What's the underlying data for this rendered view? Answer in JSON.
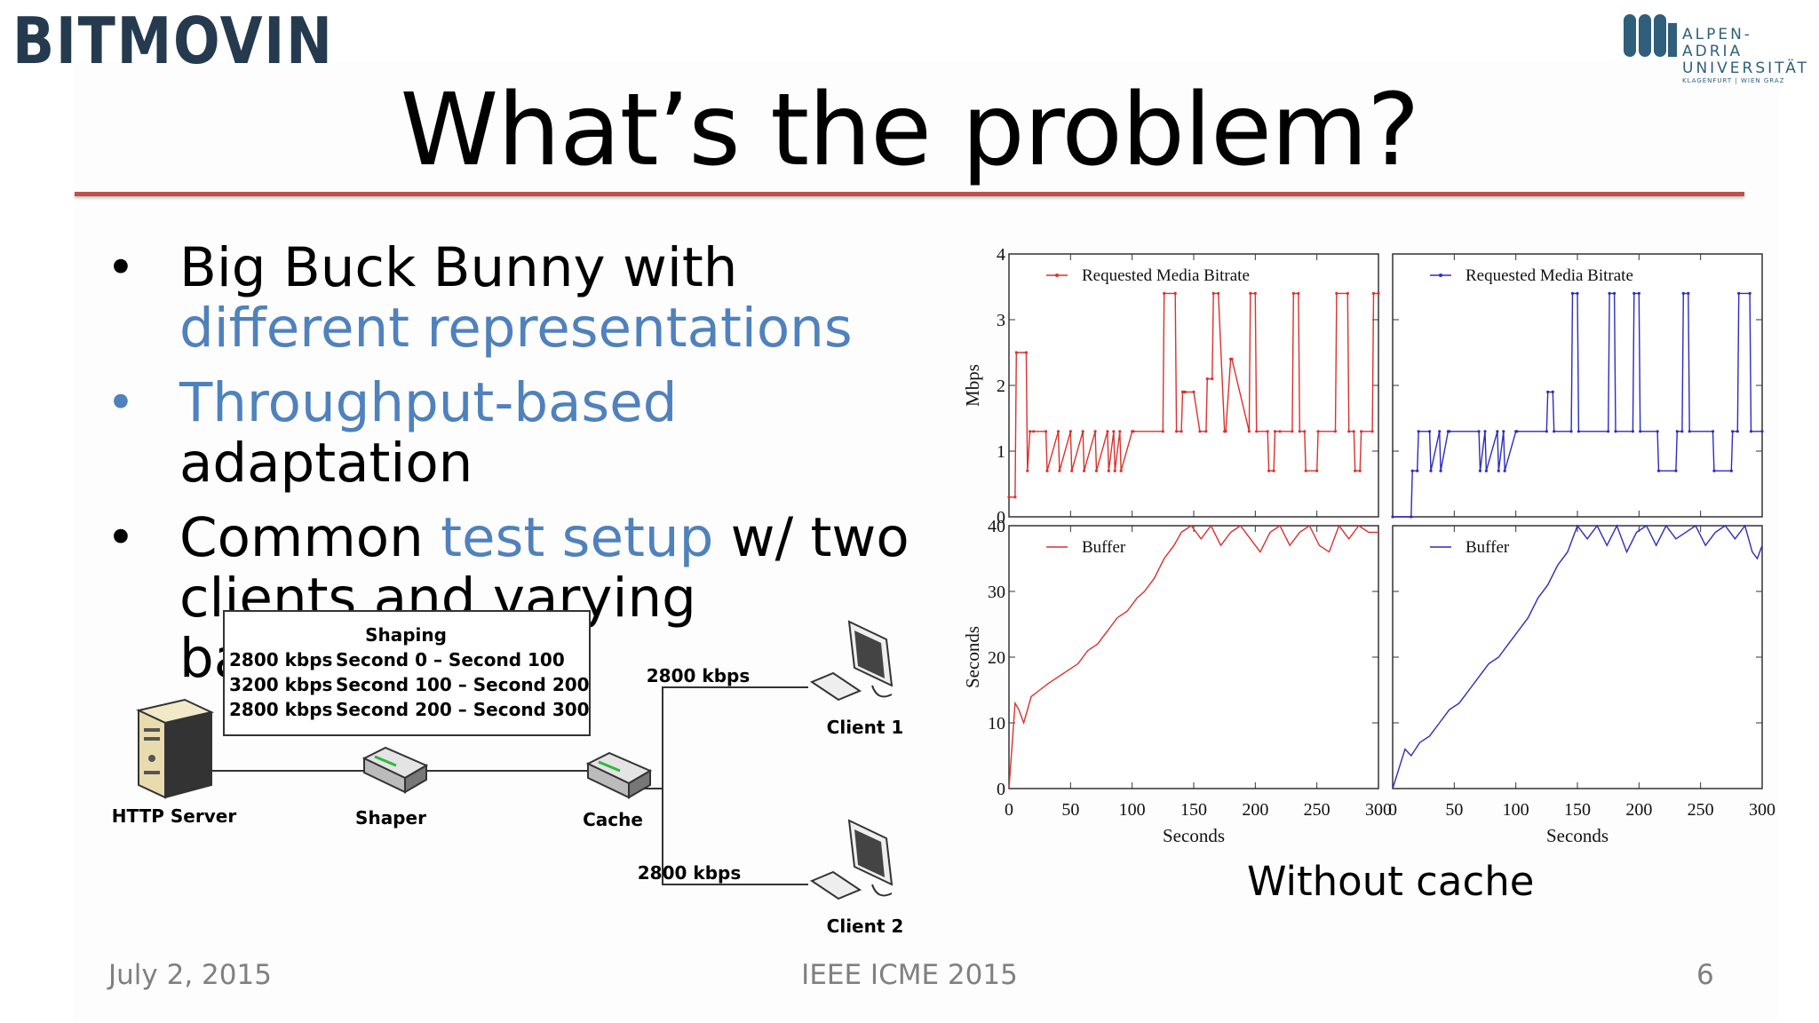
{
  "header": {
    "brand": "BITMOVIN",
    "partner_logo": {
      "line1": "ALPEN-ADRIA",
      "line2": "UNIVERSITÄT",
      "line3": "KLAGENFURT | WIEN GRAZ"
    }
  },
  "slide": {
    "title": "What’s the problem?",
    "bullets": [
      {
        "parts": [
          {
            "text": "Big Buck Bunny with ",
            "hl": false
          },
          {
            "text": "different representations",
            "hl": true
          }
        ]
      },
      {
        "parts": [
          {
            "text": "Throughput-based",
            "hl": true
          },
          {
            "text": " adaptation",
            "hl": false
          }
        ]
      },
      {
        "parts": [
          {
            "text": "Common ",
            "hl": false
          },
          {
            "text": "test setup",
            "hl": true
          },
          {
            "text": " w/ two clients and varying bandwidth",
            "hl": false
          }
        ]
      }
    ],
    "caption": "Without cache"
  },
  "diagram": {
    "shaping_title": "Shaping",
    "shaping_rows": [
      {
        "rate": "2800 kbps",
        "period": "Second 0 – Second 100"
      },
      {
        "rate": "3200 kbps",
        "period": "Second 100 – Second 200"
      },
      {
        "rate": "2800 kbps",
        "period": "Second 200 – Second 300"
      }
    ],
    "nodes": {
      "server": "HTTP Server",
      "shaper": "Shaper",
      "cache": "Cache",
      "client1": "Client 1",
      "client2": "Client 2"
    },
    "link1": "2800 kbps",
    "link2": "2800 kbps"
  },
  "footer": {
    "date": "July 2, 2015",
    "event": "IEEE ICME  2015",
    "page": "6"
  },
  "chart_data": [
    {
      "type": "line",
      "panel": "top-left",
      "ylabel": "Mbps",
      "xlim": [
        0,
        300
      ],
      "ylim": [
        0,
        4
      ],
      "yticks": [
        0,
        1,
        2,
        3,
        4
      ],
      "legend": "Requested Media Bitrate",
      "color": "#d9322e",
      "x": [
        0,
        5,
        6,
        14,
        15,
        17,
        20,
        30,
        31,
        40,
        41,
        50,
        51,
        60,
        61,
        70,
        71,
        80,
        81,
        85,
        86,
        90,
        91,
        100,
        101,
        125,
        126,
        135,
        136,
        140,
        141,
        142,
        143,
        150,
        155,
        160,
        161,
        165,
        166,
        170,
        175,
        176,
        180,
        181,
        195,
        196,
        200,
        201,
        210,
        211,
        215,
        216,
        220,
        230,
        231,
        235,
        236,
        240,
        241,
        250,
        251,
        265,
        266,
        275,
        276,
        280,
        281,
        285,
        286,
        295,
        296,
        300
      ],
      "y": [
        0.3,
        0.3,
        2.5,
        2.5,
        0.7,
        1.3,
        1.3,
        1.3,
        0.7,
        1.3,
        0.7,
        1.3,
        0.7,
        1.3,
        0.7,
        1.3,
        0.7,
        1.3,
        0.7,
        1.3,
        0.7,
        1.3,
        0.7,
        1.3,
        1.3,
        1.3,
        3.4,
        3.4,
        1.3,
        1.3,
        1.9,
        1.9,
        1.9,
        1.9,
        1.3,
        1.3,
        2.1,
        2.1,
        3.4,
        3.4,
        1.3,
        1.3,
        2.4,
        2.4,
        1.3,
        3.4,
        3.4,
        1.3,
        1.3,
        0.7,
        0.7,
        1.3,
        1.3,
        1.3,
        3.4,
        3.4,
        1.3,
        1.3,
        0.7,
        0.7,
        1.3,
        1.3,
        3.4,
        3.4,
        1.3,
        1.3,
        0.7,
        0.7,
        1.3,
        1.3,
        3.4,
        3.4
      ]
    },
    {
      "type": "line",
      "panel": "top-right",
      "xlim": [
        0,
        300
      ],
      "ylim": [
        0,
        4
      ],
      "legend": "Requested Media Bitrate",
      "color": "#2d2dbd",
      "x": [
        0,
        15,
        16,
        20,
        21,
        30,
        31,
        38,
        39,
        45,
        46,
        70,
        71,
        75,
        76,
        85,
        86,
        90,
        91,
        100,
        101,
        125,
        126,
        130,
        131,
        145,
        146,
        150,
        151,
        175,
        176,
        180,
        181,
        195,
        196,
        200,
        201,
        215,
        216,
        230,
        231,
        235,
        236,
        240,
        241,
        260,
        261,
        275,
        276,
        280,
        281,
        290,
        291,
        300
      ],
      "y": [
        0,
        0,
        0.7,
        0.7,
        1.3,
        1.3,
        0.7,
        1.3,
        0.7,
        1.3,
        1.3,
        1.3,
        0.7,
        1.3,
        0.7,
        1.3,
        0.7,
        1.3,
        0.7,
        1.3,
        1.3,
        1.3,
        1.9,
        1.9,
        1.3,
        1.3,
        3.4,
        3.4,
        1.3,
        1.3,
        3.4,
        3.4,
        1.3,
        1.3,
        3.4,
        3.4,
        1.3,
        1.3,
        0.7,
        0.7,
        1.3,
        1.3,
        3.4,
        3.4,
        1.3,
        1.3,
        0.7,
        0.7,
        1.3,
        1.3,
        3.4,
        3.4,
        1.3,
        1.3
      ]
    },
    {
      "type": "line",
      "panel": "bottom-left",
      "ylabel": "Seconds",
      "xlabel": "Seconds",
      "xlim": [
        0,
        300
      ],
      "ylim": [
        0,
        40
      ],
      "xticks": [
        0,
        50,
        100,
        150,
        200,
        250,
        300
      ],
      "yticks": [
        0,
        10,
        20,
        30,
        40
      ],
      "legend": "Buffer",
      "color": "#d9322e",
      "x": [
        0,
        5,
        8,
        12,
        18,
        25,
        32,
        40,
        48,
        56,
        64,
        72,
        80,
        88,
        96,
        104,
        110,
        118,
        126,
        134,
        140,
        148,
        156,
        164,
        172,
        180,
        188,
        196,
        204,
        212,
        220,
        228,
        236,
        244,
        252,
        260,
        268,
        276,
        284,
        292,
        300
      ],
      "y": [
        0,
        13,
        12,
        10,
        14,
        15,
        16,
        17,
        18,
        19,
        21,
        22,
        24,
        26,
        27,
        29,
        30,
        32,
        35,
        37,
        39,
        40,
        38,
        40,
        37,
        39,
        40,
        38,
        36,
        39,
        40,
        37,
        39,
        40,
        37,
        36,
        40,
        38,
        40,
        39,
        39
      ]
    },
    {
      "type": "line",
      "panel": "bottom-right",
      "xlabel": "Seconds",
      "xlim": [
        0,
        300
      ],
      "ylim": [
        0,
        40
      ],
      "xticks": [
        0,
        50,
        100,
        150,
        200,
        250,
        300
      ],
      "legend": "Buffer",
      "color": "#2d2dbd",
      "x": [
        0,
        10,
        15,
        22,
        30,
        38,
        46,
        54,
        62,
        70,
        78,
        86,
        94,
        102,
        110,
        118,
        126,
        134,
        142,
        150,
        158,
        166,
        174,
        182,
        190,
        198,
        206,
        214,
        222,
        230,
        238,
        246,
        254,
        262,
        270,
        278,
        286,
        292,
        296,
        300
      ],
      "y": [
        0,
        6,
        5,
        7,
        8,
        10,
        12,
        13,
        15,
        17,
        19,
        20,
        22,
        24,
        26,
        29,
        31,
        34,
        36,
        40,
        38,
        40,
        37,
        40,
        36,
        39,
        40,
        37,
        40,
        38,
        39,
        40,
        37,
        39,
        40,
        38,
        40,
        36,
        35,
        37
      ]
    }
  ]
}
